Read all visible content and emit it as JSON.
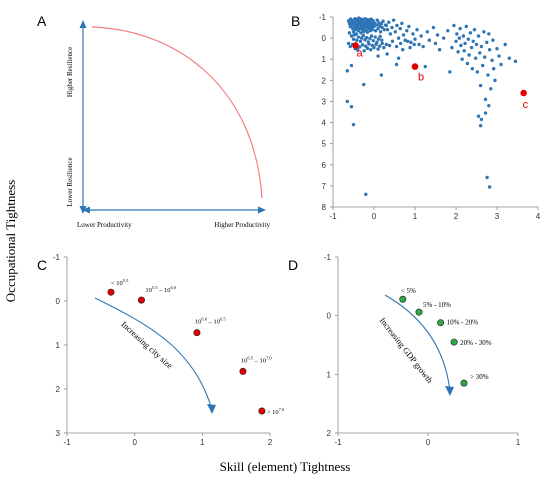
{
  "figure": {
    "y_title": "Occupational Tightness",
    "x_title": "Skill (element) Tightness"
  },
  "chart_data": [
    {
      "panel": "A",
      "type": "line",
      "axes": {
        "x_left_label": "Lower Productivity",
        "x_right_label": "Higher Productivity",
        "y_top_label": "Higher Resilience",
        "y_bottom_label": "Lower Resilience"
      },
      "curve_color": "#f08080",
      "arrow_color": "#2e75b6"
    },
    {
      "panel": "B",
      "type": "scatter",
      "xlim": [
        -1,
        4
      ],
      "ylim": [
        8,
        -1
      ],
      "x_ticks": [
        "-1",
        "0",
        "1",
        "2",
        "3",
        "4"
      ],
      "y_ticks": [
        "-1",
        "0",
        "1",
        "2",
        "3",
        "4",
        "5",
        "6",
        "7",
        "8"
      ],
      "point_color": "#2e75b6",
      "highlight_color": "#e00000",
      "highlights": [
        {
          "label": "a",
          "x": -0.45,
          "y": 0.35
        },
        {
          "label": "b",
          "x": 1.0,
          "y": 1.35
        },
        {
          "label": "c",
          "x": 3.65,
          "y": 2.6
        }
      ],
      "points": [
        [
          -0.62,
          -0.82
        ],
        [
          -0.6,
          -0.7
        ],
        [
          -0.58,
          -0.55
        ],
        [
          -0.57,
          -0.9
        ],
        [
          -0.55,
          -0.75
        ],
        [
          -0.53,
          -0.62
        ],
        [
          -0.52,
          -0.45
        ],
        [
          -0.5,
          -0.85
        ],
        [
          -0.5,
          -0.3
        ],
        [
          -0.48,
          -0.7
        ],
        [
          -0.47,
          -0.55
        ],
        [
          -0.46,
          -0.92
        ],
        [
          -0.45,
          -0.4
        ],
        [
          -0.44,
          -0.78
        ],
        [
          -0.43,
          -0.2
        ],
        [
          -0.42,
          -0.6
        ],
        [
          -0.41,
          -0.88
        ],
        [
          -0.4,
          -0.5
        ],
        [
          -0.39,
          -0.72
        ],
        [
          -0.38,
          -0.35
        ],
        [
          -0.37,
          -0.95
        ],
        [
          -0.36,
          -0.62
        ],
        [
          -0.35,
          -0.8
        ],
        [
          -0.34,
          -0.45
        ],
        [
          -0.33,
          -0.68
        ],
        [
          -0.32,
          -0.25
        ],
        [
          -0.31,
          -0.9
        ],
        [
          -0.3,
          -0.55
        ],
        [
          -0.29,
          -0.75
        ],
        [
          -0.28,
          -0.4
        ],
        [
          -0.27,
          -0.85
        ],
        [
          -0.26,
          -0.6
        ],
        [
          -0.25,
          -0.3
        ],
        [
          -0.24,
          -0.72
        ],
        [
          -0.23,
          -0.5
        ],
        [
          -0.22,
          -0.92
        ],
        [
          -0.21,
          -0.65
        ],
        [
          -0.2,
          -0.38
        ],
        [
          -0.19,
          -0.8
        ],
        [
          -0.18,
          -0.55
        ],
        [
          -0.17,
          -0.7
        ],
        [
          -0.16,
          -0.28
        ],
        [
          -0.15,
          -0.88
        ],
        [
          -0.14,
          -0.6
        ],
        [
          -0.13,
          -0.45
        ],
        [
          -0.12,
          -0.75
        ],
        [
          -0.11,
          -0.52
        ],
        [
          -0.1,
          -0.85
        ],
        [
          -0.09,
          -0.35
        ],
        [
          -0.08,
          -0.65
        ],
        [
          -0.07,
          -0.9
        ],
        [
          -0.06,
          -0.5
        ],
        [
          -0.05,
          -0.72
        ],
        [
          -0.04,
          -0.4
        ],
        [
          -0.03,
          -0.6
        ],
        [
          -0.02,
          -0.82
        ],
        [
          0.0,
          -0.55
        ],
        [
          0.02,
          -0.7
        ],
        [
          0.04,
          -0.35
        ],
        [
          0.06,
          -0.62
        ],
        [
          0.08,
          -0.85
        ],
        [
          0.1,
          -0.45
        ],
        [
          0.12,
          -0.72
        ],
        [
          0.14,
          -0.58
        ],
        [
          0.16,
          -0.3
        ],
        [
          0.18,
          -0.68
        ],
        [
          0.2,
          -0.5
        ],
        [
          0.22,
          -0.8
        ],
        [
          0.25,
          -0.4
        ],
        [
          0.28,
          -0.62
        ],
        [
          -0.6,
          -0.25
        ],
        [
          -0.55,
          -0.1
        ],
        [
          -0.5,
          0.05
        ],
        [
          -0.48,
          -0.15
        ],
        [
          -0.42,
          0.1
        ],
        [
          -0.38,
          -0.05
        ],
        [
          -0.33,
          0.15
        ],
        [
          -0.3,
          0.0
        ],
        [
          -0.26,
          -0.12
        ],
        [
          -0.22,
          0.08
        ],
        [
          -0.18,
          -0.02
        ],
        [
          -0.14,
          0.18
        ],
        [
          -0.1,
          0.02
        ],
        [
          -0.06,
          -0.1
        ],
        [
          -0.02,
          0.12
        ],
        [
          0.03,
          -0.05
        ],
        [
          0.07,
          0.2
        ],
        [
          0.11,
          0.05
        ],
        [
          0.15,
          -0.08
        ],
        [
          0.19,
          0.1
        ],
        [
          -0.62,
          0.25
        ],
        [
          -0.58,
          0.4
        ],
        [
          -0.52,
          0.3
        ],
        [
          -0.46,
          0.5
        ],
        [
          -0.4,
          0.55
        ],
        [
          -0.35,
          0.42
        ],
        [
          -0.28,
          0.32
        ],
        [
          -0.24,
          0.6
        ],
        [
          -0.2,
          0.38
        ],
        [
          -0.16,
          0.48
        ],
        [
          -0.12,
          0.28
        ],
        [
          -0.08,
          0.55
        ],
        [
          -0.04,
          0.35
        ],
        [
          0.0,
          0.45
        ],
        [
          0.05,
          0.3
        ],
        [
          0.1,
          0.52
        ],
        [
          0.14,
          0.38
        ],
        [
          0.2,
          0.25
        ],
        [
          0.24,
          0.45
        ],
        [
          0.3,
          0.3
        ],
        [
          0.3,
          -0.6
        ],
        [
          0.33,
          -0.4
        ],
        [
          0.36,
          -0.75
        ],
        [
          0.4,
          -0.2
        ],
        [
          0.44,
          -0.5
        ],
        [
          0.48,
          -0.85
        ],
        [
          0.52,
          -0.3
        ],
        [
          0.56,
          -0.6
        ],
        [
          0.6,
          0.0
        ],
        [
          0.64,
          -0.45
        ],
        [
          0.68,
          -0.7
        ],
        [
          0.72,
          -0.15
        ],
        [
          0.76,
          0.1
        ],
        [
          0.8,
          -0.35
        ],
        [
          0.85,
          -0.55
        ],
        [
          0.9,
          0.2
        ],
        [
          0.95,
          -0.2
        ],
        [
          1.0,
          0.05
        ],
        [
          1.05,
          -0.4
        ],
        [
          1.1,
          0.3
        ],
        [
          0.38,
          0.35
        ],
        [
          0.45,
          0.15
        ],
        [
          0.55,
          0.4
        ],
        [
          0.65,
          0.25
        ],
        [
          0.7,
          0.55
        ],
        [
          0.82,
          0.15
        ],
        [
          0.88,
          0.45
        ],
        [
          0.98,
          0.3
        ],
        [
          1.15,
          -0.1
        ],
        [
          1.2,
          0.4
        ],
        [
          1.3,
          -0.3
        ],
        [
          1.35,
          0.1
        ],
        [
          1.45,
          -0.5
        ],
        [
          1.5,
          0.25
        ],
        [
          1.55,
          -0.15
        ],
        [
          1.6,
          0.55
        ],
        [
          1.7,
          0.0
        ],
        [
          1.8,
          -0.35
        ],
        [
          1.9,
          0.45
        ],
        [
          1.95,
          -0.6
        ],
        [
          2.0,
          0.15
        ],
        [
          2.02,
          -0.2
        ],
        [
          2.05,
          0.65
        ],
        [
          2.08,
          0.0
        ],
        [
          2.1,
          -0.45
        ],
        [
          2.12,
          0.35
        ],
        [
          2.15,
          1.0
        ],
        [
          2.18,
          -0.1
        ],
        [
          2.2,
          0.6
        ],
        [
          2.22,
          0.25
        ],
        [
          2.25,
          -0.55
        ],
        [
          2.28,
          1.2
        ],
        [
          2.3,
          0.05
        ],
        [
          2.32,
          0.8
        ],
        [
          2.35,
          -0.25
        ],
        [
          2.38,
          0.45
        ],
        [
          2.4,
          1.45
        ],
        [
          2.42,
          0.15
        ],
        [
          2.45,
          -0.4
        ],
        [
          2.48,
          0.95
        ],
        [
          2.5,
          0.3
        ],
        [
          2.52,
          1.6
        ],
        [
          2.55,
          -0.1
        ],
        [
          2.58,
          0.7
        ],
        [
          2.6,
          2.25
        ],
        [
          2.62,
          0.4
        ],
        [
          2.65,
          1.3
        ],
        [
          2.68,
          -0.3
        ],
        [
          2.7,
          0.9
        ],
        [
          2.72,
          2.9
        ],
        [
          2.75,
          0.2
        ],
        [
          2.78,
          1.75
        ],
        [
          2.8,
          -0.2
        ],
        [
          2.82,
          0.55
        ],
        [
          2.85,
          2.4
        ],
        [
          2.88,
          1.05
        ],
        [
          2.9,
          0.1
        ],
        [
          2.92,
          1.45
        ],
        [
          2.95,
          2.0
        ],
        [
          3.0,
          0.5
        ],
        [
          3.05,
          0.85
        ],
        [
          3.1,
          1.25
        ],
        [
          3.2,
          0.3
        ],
        [
          3.3,
          0.95
        ],
        [
          3.45,
          1.1
        ],
        [
          2.55,
          3.7
        ],
        [
          2.62,
          3.85
        ],
        [
          2.6,
          4.15
        ],
        [
          2.72,
          3.55
        ],
        [
          2.8,
          3.2
        ],
        [
          2.76,
          6.6
        ],
        [
          2.82,
          7.05
        ],
        [
          -0.65,
          3.0
        ],
        [
          -0.55,
          3.25
        ],
        [
          -0.5,
          4.1
        ],
        [
          -0.2,
          7.4
        ],
        [
          -0.25,
          2.2
        ],
        [
          0.18,
          1.75
        ],
        [
          0.55,
          1.25
        ],
        [
          -0.65,
          1.55
        ],
        [
          -0.55,
          1.3
        ],
        [
          0.1,
          0.85
        ],
        [
          0.32,
          0.75
        ],
        [
          0.6,
          0.95
        ],
        [
          1.25,
          1.35
        ],
        [
          1.85,
          1.6
        ]
      ]
    },
    {
      "panel": "C",
      "type": "scatter",
      "xlim": [
        -1,
        2
      ],
      "ylim": [
        3,
        -1
      ],
      "x_ticks": [
        "-1",
        "0",
        "1",
        "2"
      ],
      "y_ticks": [
        "-1",
        "0",
        "1",
        "2",
        "3"
      ],
      "point_color": "#e00000",
      "trend_label": "Increasing city size",
      "arrow_color": "#2e75b6",
      "points": [
        {
          "label": "< 10^5.5",
          "base": "< 10",
          "exp": "5.5",
          "x": -0.35,
          "y": -0.2
        },
        {
          "label": "10^5.5 – 10^6.0",
          "x": 0.1,
          "y": -0.02
        },
        {
          "label": "10^6.0 – 10^6.5",
          "x": 0.92,
          "y": 0.72
        },
        {
          "label": "10^6.5 – 10^7.0",
          "x": 1.6,
          "y": 1.6
        },
        {
          "label": "> 10^7.0",
          "base": "> 10",
          "exp": "7.0",
          "x": 1.88,
          "y": 2.5
        }
      ]
    },
    {
      "panel": "D",
      "type": "scatter",
      "xlim": [
        -1,
        1
      ],
      "ylim": [
        2,
        -1
      ],
      "x_ticks": [
        "-1",
        "0",
        "1"
      ],
      "y_ticks": [
        "-1",
        "0",
        "1",
        "2"
      ],
      "point_color": "#2ea84a",
      "trend_label": "Increasing GDP growth",
      "arrow_color": "#2e75b6",
      "points": [
        {
          "label": "< 5%",
          "x": -0.28,
          "y": -0.28
        },
        {
          "label": "5% - 10%",
          "x": -0.1,
          "y": -0.06
        },
        {
          "label": "10% - 20%",
          "x": 0.14,
          "y": 0.12
        },
        {
          "label": "20% - 30%",
          "x": 0.29,
          "y": 0.45
        },
        {
          "label": "> 30%",
          "x": 0.4,
          "y": 1.15
        }
      ]
    }
  ]
}
